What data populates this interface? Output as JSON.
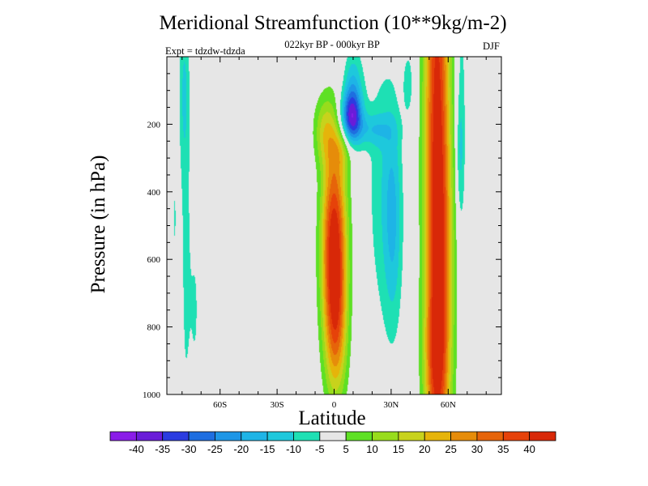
{
  "chart_data": {
    "type": "heatmap",
    "title": "Meridional Streamfunction (10**9kg/m-2)",
    "subtitle": "022kyr BP - 000kyr BP",
    "left_label": "Expt = tdzdw-tdzda",
    "right_label": "DJF",
    "xlabel": "Latitude",
    "ylabel": "Pressure (in hPa)",
    "x_ticks": [
      {
        "value": -60,
        "label": "60S"
      },
      {
        "value": -30,
        "label": "30S"
      },
      {
        "value": 0,
        "label": "0"
      },
      {
        "value": 30,
        "label": "30N"
      },
      {
        "value": 60,
        "label": "60N"
      }
    ],
    "y_ticks": [
      {
        "value": 200,
        "label": "200"
      },
      {
        "value": 400,
        "label": "400"
      },
      {
        "value": 600,
        "label": "600"
      },
      {
        "value": 800,
        "label": "800"
      },
      {
        "value": 1000,
        "label": "1000"
      }
    ],
    "xlim": [
      -88,
      88
    ],
    "ylim": [
      1000,
      0
    ],
    "background_color": "#e6e6e6",
    "levels": [
      -40,
      -35,
      -30,
      -25,
      -20,
      -15,
      -10,
      -5,
      5,
      10,
      15,
      20,
      25,
      30,
      35,
      40
    ],
    "colorbar_colors": [
      "#8a1ce8",
      "#6a1cd8",
      "#2b3ce0",
      "#1e6ee0",
      "#1e96e6",
      "#1eb4e6",
      "#1ec8dc",
      "#1ee0b4",
      "#e6e6e6",
      "#5ee024",
      "#98dc1c",
      "#c8d21c",
      "#e6b40a",
      "#e68c0a",
      "#e6640a",
      "#e6420a",
      "#d82808"
    ],
    "features": [
      {
        "lat": 0,
        "p": 560,
        "slat": 4.5,
        "sp": 210,
        "value": 45
      },
      {
        "lat": 1,
        "p": 820,
        "slat": 4,
        "sp": 150,
        "value": 18
      },
      {
        "lat": -5,
        "p": 220,
        "slat": 4,
        "sp": 70,
        "value": 14
      },
      {
        "lat": 4,
        "p": 270,
        "slat": 4,
        "sp": 50,
        "value": 10
      },
      {
        "lat": 54,
        "p": 300,
        "slat": 4.5,
        "sp": 900,
        "value": 42
      },
      {
        "lat": 58,
        "p": 650,
        "slat": 4,
        "sp": 350,
        "value": 12
      },
      {
        "lat": 53,
        "p": 880,
        "slat": 4,
        "sp": 130,
        "value": 10
      },
      {
        "lat": 9,
        "p": 180,
        "slat": 4,
        "sp": 55,
        "value": -32
      },
      {
        "lat": 10,
        "p": 90,
        "slat": 3.5,
        "sp": 80,
        "value": -14
      },
      {
        "lat": 20,
        "p": 215,
        "slat": 8,
        "sp": 35,
        "value": -10
      },
      {
        "lat": 31,
        "p": 480,
        "slat": 3.5,
        "sp": 230,
        "value": -15
      },
      {
        "lat": 24,
        "p": 380,
        "slat": 5,
        "sp": 300,
        "value": -7
      },
      {
        "lat": 39,
        "p": 80,
        "slat": 2,
        "sp": 70,
        "value": -8
      },
      {
        "lat": -79,
        "p": 100,
        "slat": 1.8,
        "sp": 160,
        "value": -8
      },
      {
        "lat": -78,
        "p": 560,
        "slat": 2.2,
        "sp": 500,
        "value": -6
      },
      {
        "lat": -73,
        "p": 750,
        "slat": 2,
        "sp": 200,
        "value": -5
      },
      {
        "lat": -84,
        "p": 480,
        "slat": 1.5,
        "sp": 200,
        "value": -5
      },
      {
        "lat": 67,
        "p": 180,
        "slat": 1.6,
        "sp": 250,
        "value": -8
      },
      {
        "lat": 66,
        "p": 300,
        "slat": 1.5,
        "sp": 120,
        "value": -6
      },
      {
        "lat": 74,
        "p": 500,
        "slat": 1.5,
        "sp": 150,
        "value": -5
      }
    ]
  }
}
